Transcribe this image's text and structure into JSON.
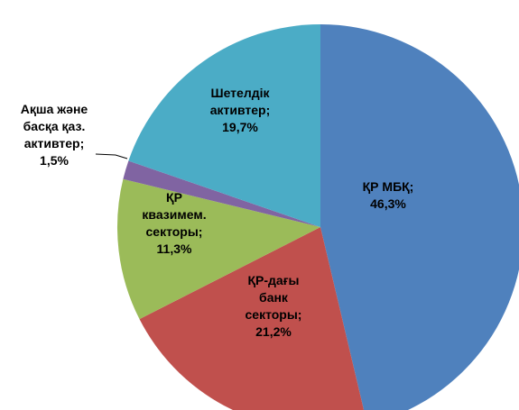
{
  "chart_data": {
    "type": "pie",
    "categories": [
      "ҚР МБҚ;",
      "ҚР-дағы\nбанк\nсекторы;",
      "ҚР\nквазимем.\nсекторы;",
      "Ақша және\nбасқа қаз.\nактивтер;",
      "Шетелдік\nактивтер;"
    ],
    "values": [
      46.3,
      21.2,
      11.3,
      1.5,
      19.7
    ],
    "value_labels": [
      "46,3%",
      "21,2%",
      "11,3%",
      "1,5%",
      "19,7%"
    ],
    "colors": [
      "#4f81bd",
      "#c0504d",
      "#9bbb59",
      "#8064a2",
      "#4bacc6"
    ]
  }
}
